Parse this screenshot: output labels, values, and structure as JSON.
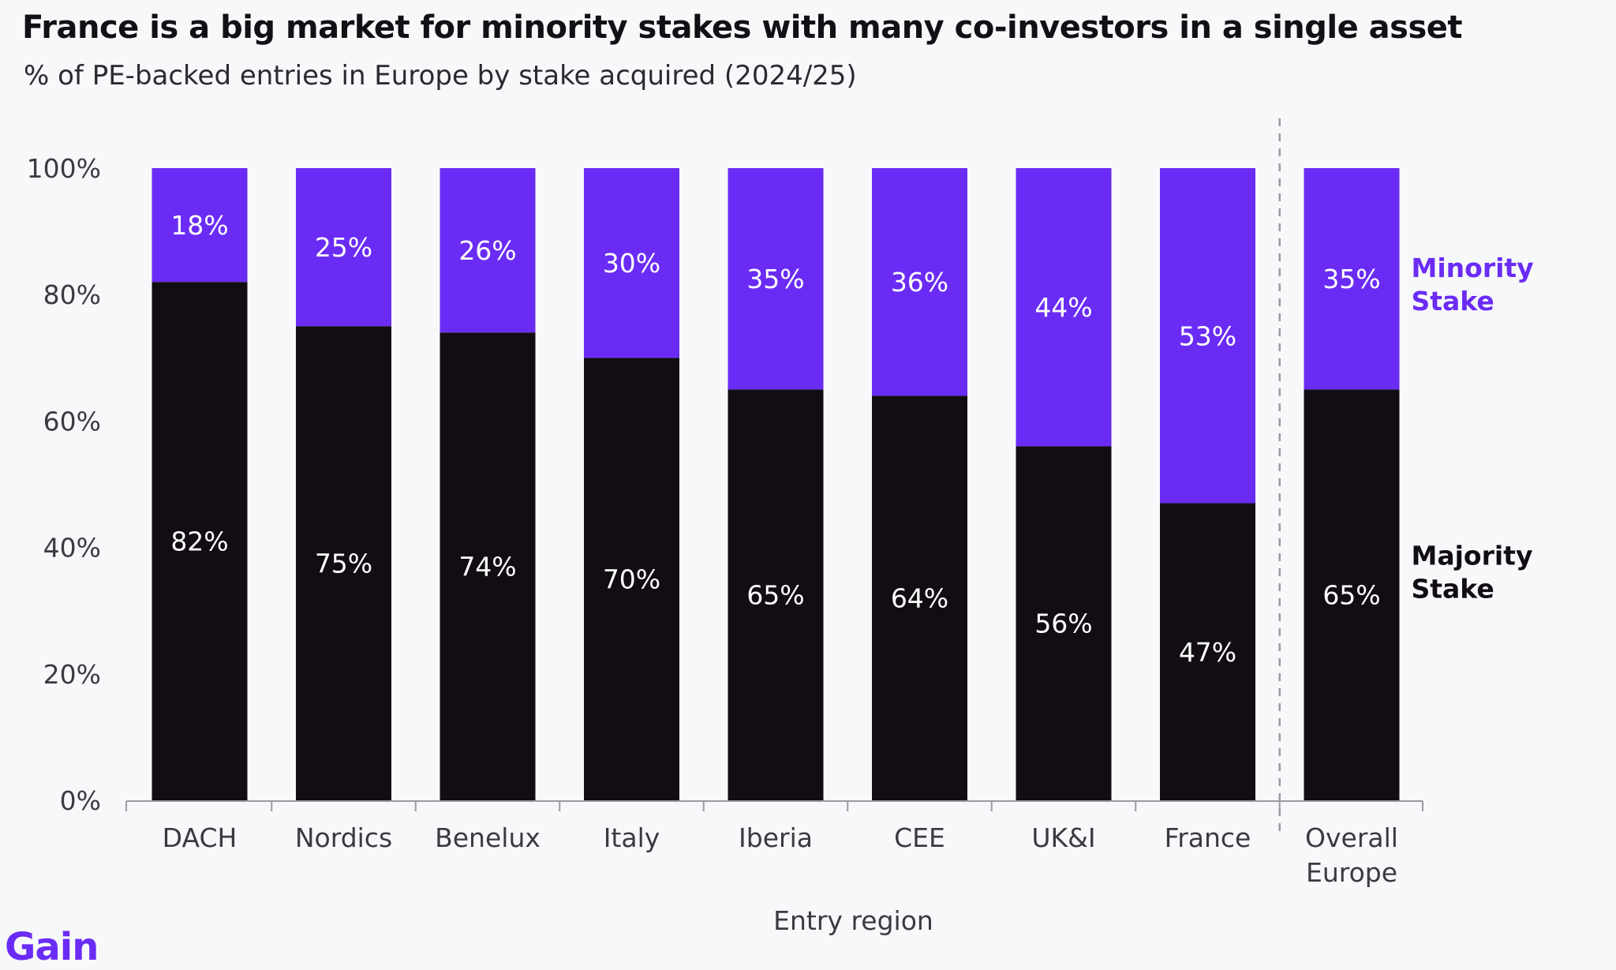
{
  "title": "France is a big market for minority stakes with many co-investors in a single asset",
  "subtitle": "% of PE-backed entries in Europe by stake acquired (2024/25)",
  "brand": "Gain",
  "colors": {
    "majority": "#120d13",
    "minority": "#6a2cf5",
    "axis": "#9a9aa2",
    "text": "#3b3a40",
    "background": "#f7f8fa"
  },
  "chart_data": {
    "type": "bar",
    "stacked": true,
    "categories": [
      "DACH",
      "Nordics",
      "Benelux",
      "Italy",
      "Iberia",
      "CEE",
      "UK&I",
      "France",
      "Overall Europe"
    ],
    "category_labels": [
      [
        "DACH"
      ],
      [
        "Nordics"
      ],
      [
        "Benelux"
      ],
      [
        "Italy"
      ],
      [
        "Iberia"
      ],
      [
        "CEE"
      ],
      [
        "UK&I"
      ],
      [
        "France"
      ],
      [
        "Overall",
        "Europe"
      ]
    ],
    "series": [
      {
        "name": "Majority Stake",
        "label_lines": [
          "Majority",
          "Stake"
        ],
        "values": [
          82,
          75,
          74,
          70,
          65,
          64,
          56,
          47,
          65
        ]
      },
      {
        "name": "Minority Stake",
        "label_lines": [
          "Minority",
          "Stake"
        ],
        "values": [
          18,
          25,
          26,
          30,
          35,
          36,
          44,
          53,
          35
        ]
      }
    ],
    "xlabel": "Entry region",
    "ylabel": "",
    "ylim": [
      0,
      100
    ],
    "yticks": [
      "0%",
      "20%",
      "40%",
      "60%",
      "80%",
      "100%"
    ],
    "value_suffix": "%",
    "separator_before_category": "Overall Europe",
    "legend": "right-of-last-bar",
    "grid": false
  }
}
